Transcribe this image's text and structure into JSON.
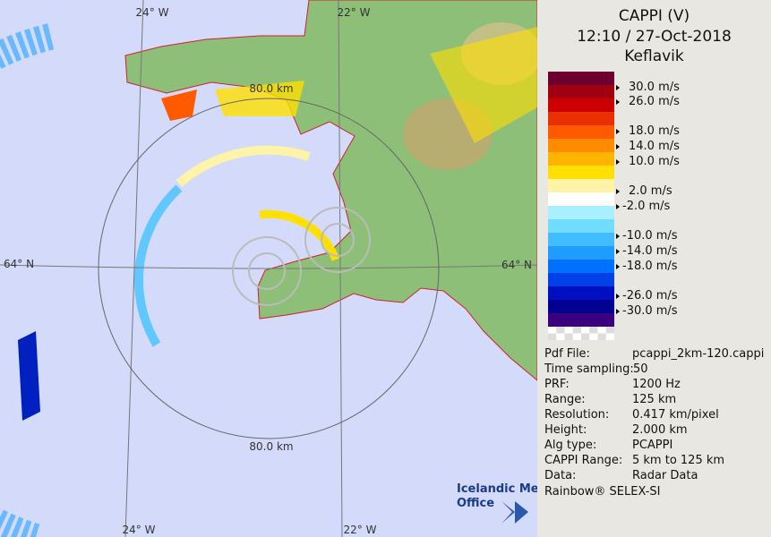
{
  "header": {
    "title": "CAPPI (V)",
    "time": "12:10 / 27-Oct-2018",
    "site": "Keflavik"
  },
  "legend": {
    "colors": [
      "#6e0030",
      "#a00010",
      "#cc0000",
      "#e83000",
      "#ff5a00",
      "#ff8c00",
      "#ffb400",
      "#ffe000",
      "#fff3a8",
      "#ffffff",
      "#a8f0ff",
      "#70dcff",
      "#40bcff",
      "#1e9cff",
      "#0070ff",
      "#0040e8",
      "#0010c0",
      "#000090",
      "#3a0080"
    ],
    "labels": [
      "30.0 m/s",
      "26.0 m/s",
      "18.0 m/s",
      "14.0 m/s",
      "10.0 m/s",
      "2.0 m/s",
      "-2.0 m/s",
      "-10.0 m/s",
      "-14.0 m/s",
      "-18.0 m/s",
      "-26.0 m/s",
      "-30.0 m/s"
    ]
  },
  "info": [
    [
      "Pdf File:",
      "pcappi_2km-120.cappi"
    ],
    [
      "Time sampling:",
      "50"
    ],
    [
      "PRF:",
      "1200 Hz"
    ],
    [
      "Range:",
      "125 km"
    ],
    [
      "Resolution:",
      "0.417 km/pixel"
    ],
    [
      "Height:",
      "2.000 km"
    ],
    [
      "Alg type:",
      "PCAPPI"
    ],
    [
      "CAPPI Range:",
      "5 km to 125 km"
    ],
    [
      "Data:",
      "Radar Data"
    ]
  ],
  "footer": "Rainbow® SELEX-SI",
  "logo": {
    "line1": "Icelandic Met",
    "line2": "Office"
  },
  "map_labels": {
    "top_left_lon": "24° W",
    "top_right_lon": "22° W",
    "left_lat": "64° N",
    "right_lat": "64° N",
    "ring_top": "80.0 km",
    "ring_bottom": "80.0 km",
    "bottom_left_lon": "24° W",
    "bottom_right_lon": "22° W"
  }
}
